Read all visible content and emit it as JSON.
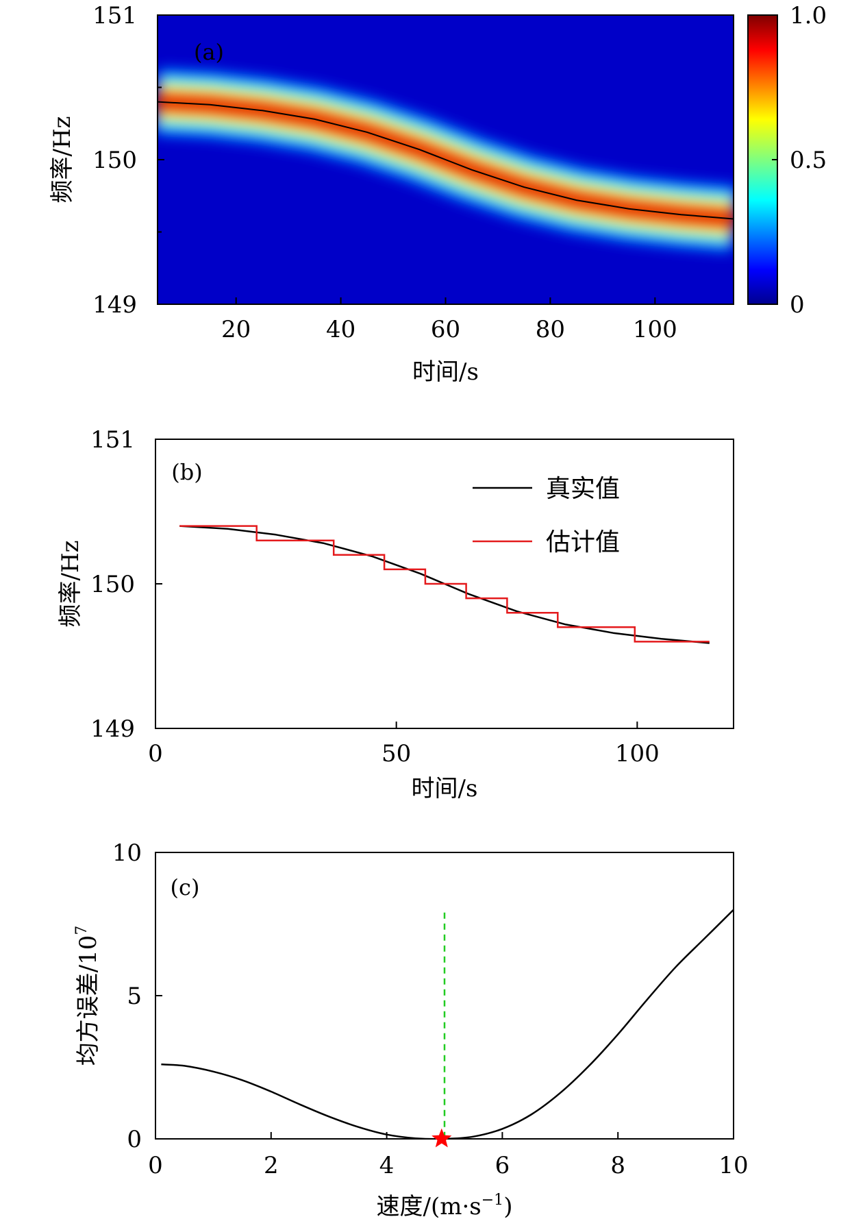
{
  "chart_data": [
    {
      "type": "heatmap",
      "panel_label": "(a)",
      "xlabel": "时间/s",
      "ylabel": "频率/Hz",
      "xlim": [
        5,
        115
      ],
      "ylim": [
        149,
        151
      ],
      "xticks": [
        20,
        40,
        60,
        80,
        100
      ],
      "yticks": [
        149,
        150,
        151
      ],
      "colorbar": {
        "min": 0,
        "max": 1.0,
        "ticks": [
          "1.0",
          "0.5",
          "0"
        ]
      },
      "ridge": {
        "x": [
          5,
          15,
          25,
          35,
          45,
          55,
          60,
          65,
          75,
          85,
          95,
          105,
          115
        ],
        "y": [
          150.4,
          150.38,
          150.34,
          150.28,
          150.19,
          150.07,
          150.0,
          149.93,
          149.81,
          149.72,
          149.66,
          149.62,
          149.59
        ]
      }
    },
    {
      "type": "line",
      "panel_label": "(b)",
      "xlabel": "时间/s",
      "ylabel": "频率/Hz",
      "xlim": [
        0,
        120
      ],
      "ylim": [
        149,
        151
      ],
      "xticks": [
        0,
        50,
        100
      ],
      "yticks": [
        149,
        150,
        151
      ],
      "legend": "top-right",
      "series": [
        {
          "name": "真实值",
          "color": "#000000",
          "x": [
            5,
            15,
            25,
            35,
            45,
            55,
            60,
            65,
            75,
            85,
            95,
            105,
            115
          ],
          "y": [
            150.4,
            150.38,
            150.34,
            150.28,
            150.19,
            150.07,
            150.0,
            149.93,
            149.81,
            149.72,
            149.66,
            149.62,
            149.59
          ]
        },
        {
          "name": "估计值",
          "color": "#e41a1c",
          "step": true,
          "x": [
            5,
            21,
            21,
            37,
            37,
            47.5,
            47.5,
            56,
            56,
            64.5,
            64.5,
            73,
            73,
            83.5,
            83.5,
            99.5,
            99.5,
            115
          ],
          "y": [
            150.4,
            150.4,
            150.3,
            150.3,
            150.2,
            150.2,
            150.1,
            150.1,
            150.0,
            150.0,
            149.9,
            149.9,
            149.8,
            149.8,
            149.7,
            149.7,
            149.6,
            149.6
          ]
        }
      ]
    },
    {
      "type": "line",
      "panel_label": "(c)",
      "xlabel": "速度/(m·s",
      "xlabel_sup": "−1",
      "xlabel_end": ")",
      "ylabel": "均方误差/10",
      "ylabel_sup": "7",
      "xlim": [
        0,
        10
      ],
      "ylim": [
        0,
        10
      ],
      "xticks": [
        0,
        2,
        4,
        6,
        8,
        10
      ],
      "yticks": [
        0,
        5,
        10
      ],
      "series": [
        {
          "name": "",
          "color": "#000000",
          "x": [
            0.1,
            0.5,
            1.0,
            1.5,
            2.0,
            2.5,
            3.0,
            3.5,
            4.0,
            4.5,
            5.0,
            5.5,
            6.0,
            6.5,
            7.0,
            7.5,
            8.0,
            8.5,
            9.0,
            9.5,
            10.0
          ],
          "y": [
            2.6,
            2.55,
            2.35,
            2.05,
            1.65,
            1.2,
            0.78,
            0.42,
            0.15,
            0.02,
            0.0,
            0.08,
            0.35,
            0.85,
            1.6,
            2.55,
            3.65,
            4.85,
            6.0,
            7.0,
            8.0
          ]
        }
      ],
      "marker_line": {
        "x": 5.0,
        "y_top": 7.9,
        "color": "#22cc22"
      },
      "marker_star": {
        "x": 4.95,
        "y": 0.0,
        "color": "#ff0000"
      }
    }
  ]
}
